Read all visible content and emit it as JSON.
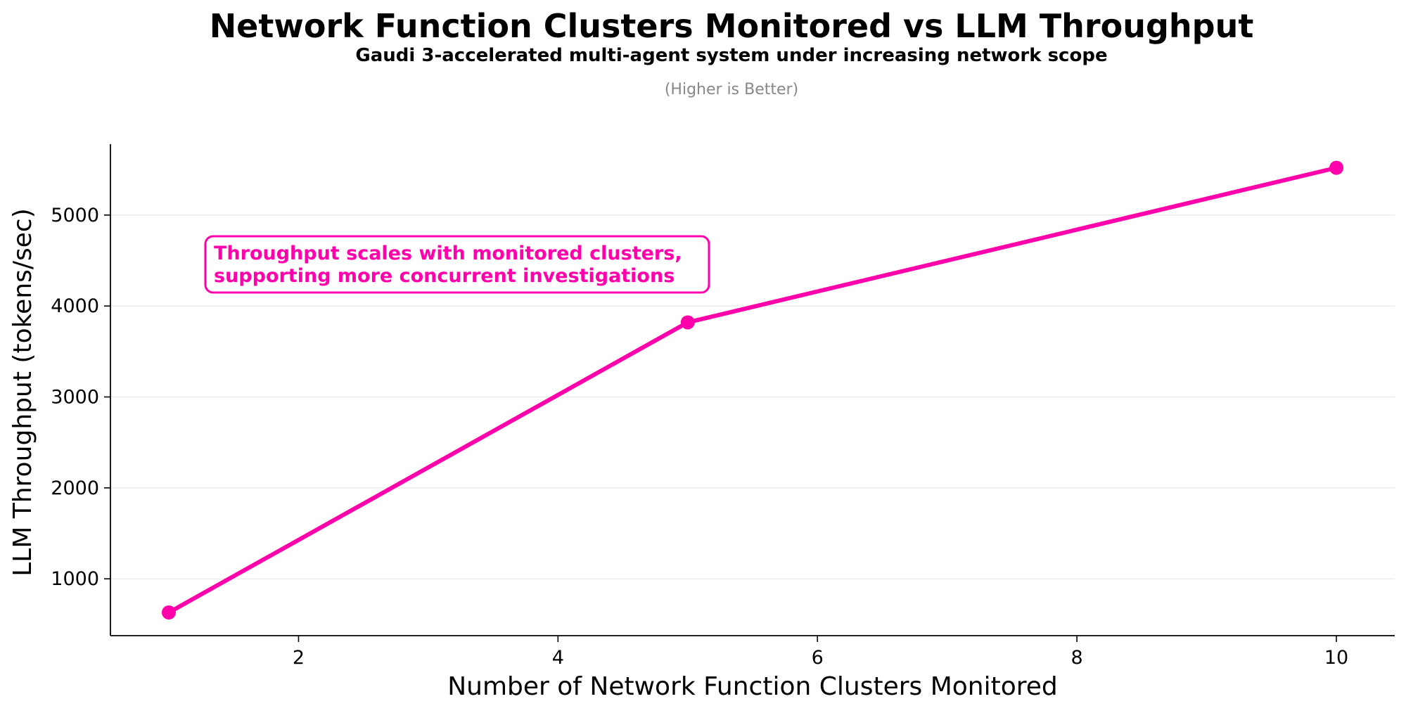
{
  "chart_data": {
    "type": "line",
    "title": "Network Function Clusters Monitored vs LLM Throughput",
    "subtitle": "Gaudi 3-accelerated multi-agent system under increasing network scope",
    "note": "(Higher is Better)",
    "xlabel": "Number of Network Function Clusters Monitored",
    "ylabel": "LLM Throughput (tokens/sec)",
    "x": [
      1,
      5,
      10
    ],
    "series": [
      {
        "values": [
          630,
          3820,
          5520
        ],
        "color": "#ff00aa"
      }
    ],
    "xlim": [
      0.55,
      10.45
    ],
    "ylim": [
      375,
      5780
    ],
    "xticks": [
      2,
      4,
      6,
      8,
      10
    ],
    "yticks": [
      1000,
      2000,
      3000,
      4000,
      5000
    ],
    "grid": "horizontal",
    "annotation": {
      "lines": [
        "Throughput scales with monitored clusters,",
        "supporting more concurrent investigations"
      ],
      "color": "#ff00aa"
    }
  }
}
